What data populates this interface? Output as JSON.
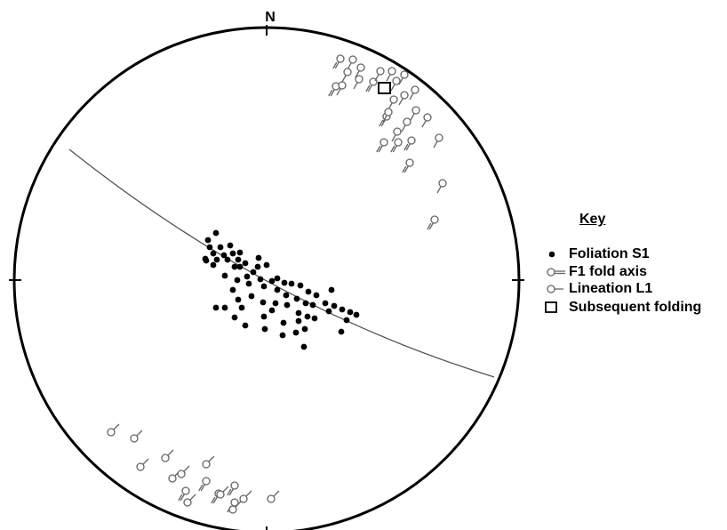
{
  "north_label": "N",
  "key": {
    "title": "Key",
    "items": [
      {
        "symbol": "filled-dot-icon",
        "label": "Foliation S1"
      },
      {
        "symbol": "fold-axis-icon",
        "label": "F1 fold axis"
      },
      {
        "symbol": "lineation-icon",
        "label": "Lineation L1"
      },
      {
        "symbol": "open-square-icon",
        "label": "Subsequent folding"
      }
    ]
  },
  "colors": {
    "primitive": "#000000",
    "great_circle": "#555555",
    "foliation": "#000000",
    "fold_axis": "#666666",
    "lineation": "#666666",
    "subsequent_folding": "#000000"
  }
}
